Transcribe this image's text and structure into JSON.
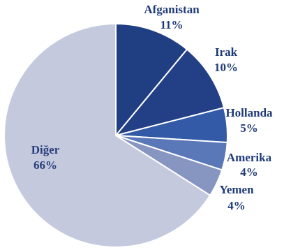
{
  "chart_data": {
    "type": "pie",
    "title": "",
    "slices": [
      {
        "label": "Afganistan",
        "value": 11,
        "display": "11%",
        "color": "#203f82",
        "label_color": "#1f3a78"
      },
      {
        "label": "Irak",
        "value": 10,
        "display": "10%",
        "color": "#233f86",
        "label_color": "#1f3a78"
      },
      {
        "label": "Hollanda",
        "value": 5,
        "display": "5%",
        "color": "#335aa6",
        "label_color": "#1f3a78"
      },
      {
        "label": "Amerika",
        "value": 4,
        "display": "4%",
        "color": "#5a78b8",
        "label_color": "#1f3a78"
      },
      {
        "label": "Yemen",
        "value": 4,
        "display": "4%",
        "color": "#8795c1",
        "label_color": "#1f3a78"
      },
      {
        "label": "Diğer",
        "value": 66,
        "display": "66%",
        "color": "#c4c9de",
        "label_color": "#2a3f7a"
      }
    ],
    "start_angle_degrees_clockwise_from_top": 0,
    "legend": "none"
  }
}
